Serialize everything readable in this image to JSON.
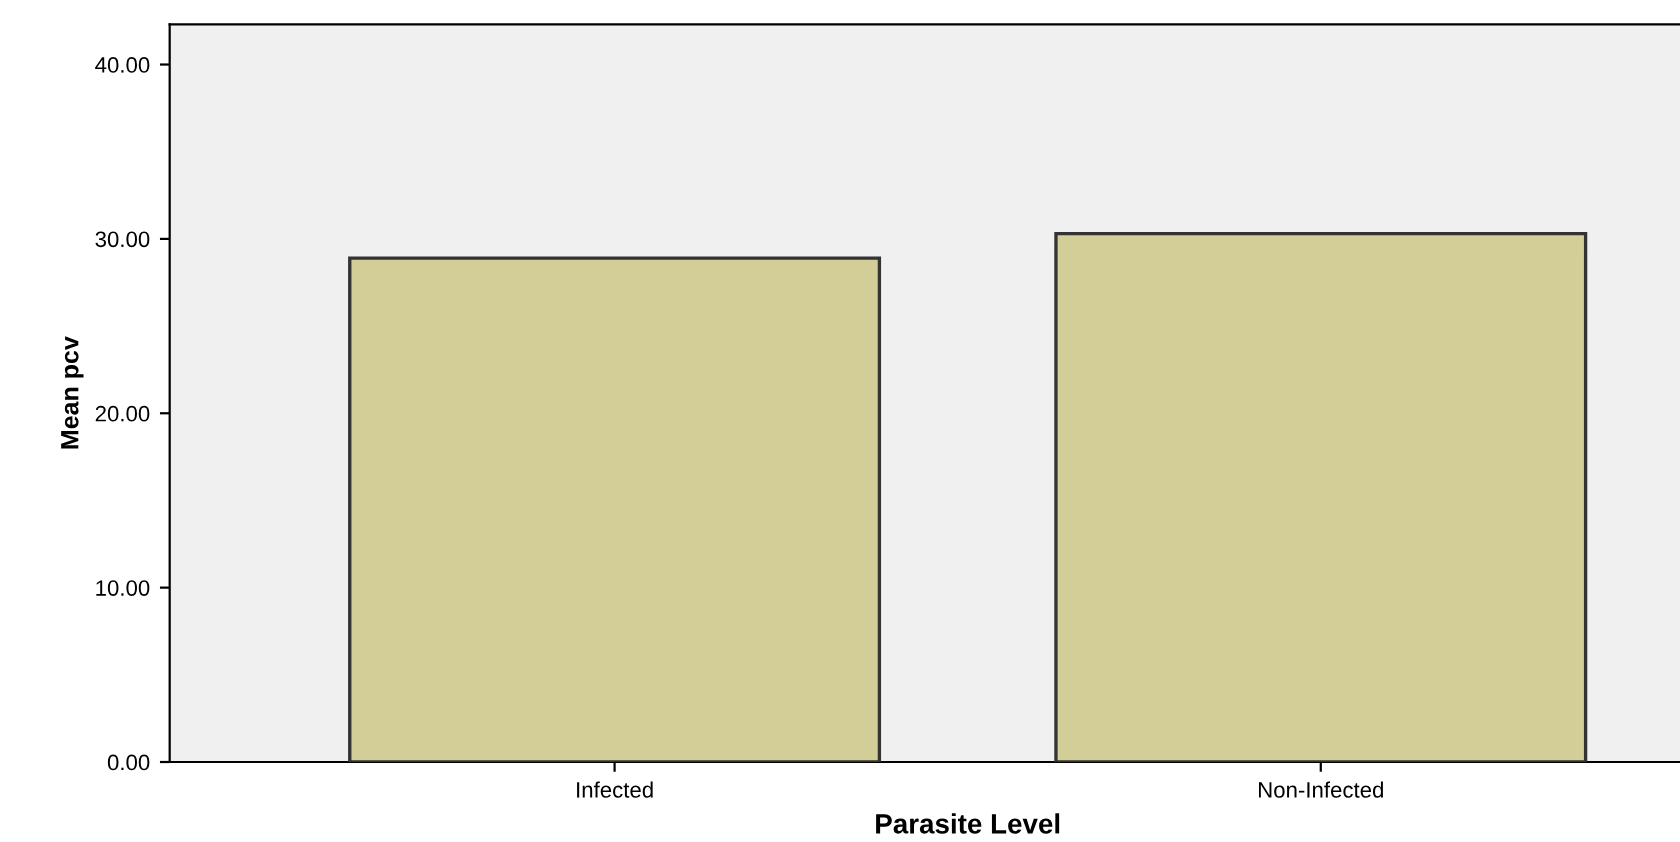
{
  "chart_data": {
    "type": "bar",
    "xlabel": "Parasite Level",
    "ylabel": "Mean pcv",
    "categories": [
      "Infected",
      "Non-Infected"
    ],
    "values": [
      28.9,
      30.3
    ],
    "color": "#d3ce97",
    "ylim": [
      0,
      42.3
    ],
    "yticks": [
      {
        "value": 0,
        "label": "0.00"
      },
      {
        "value": 10,
        "label": "10.00"
      },
      {
        "value": 20,
        "label": "20.00"
      },
      {
        "value": 30,
        "label": "30.00"
      },
      {
        "value": 40,
        "label": "40.00"
      }
    ],
    "grid": false
  }
}
